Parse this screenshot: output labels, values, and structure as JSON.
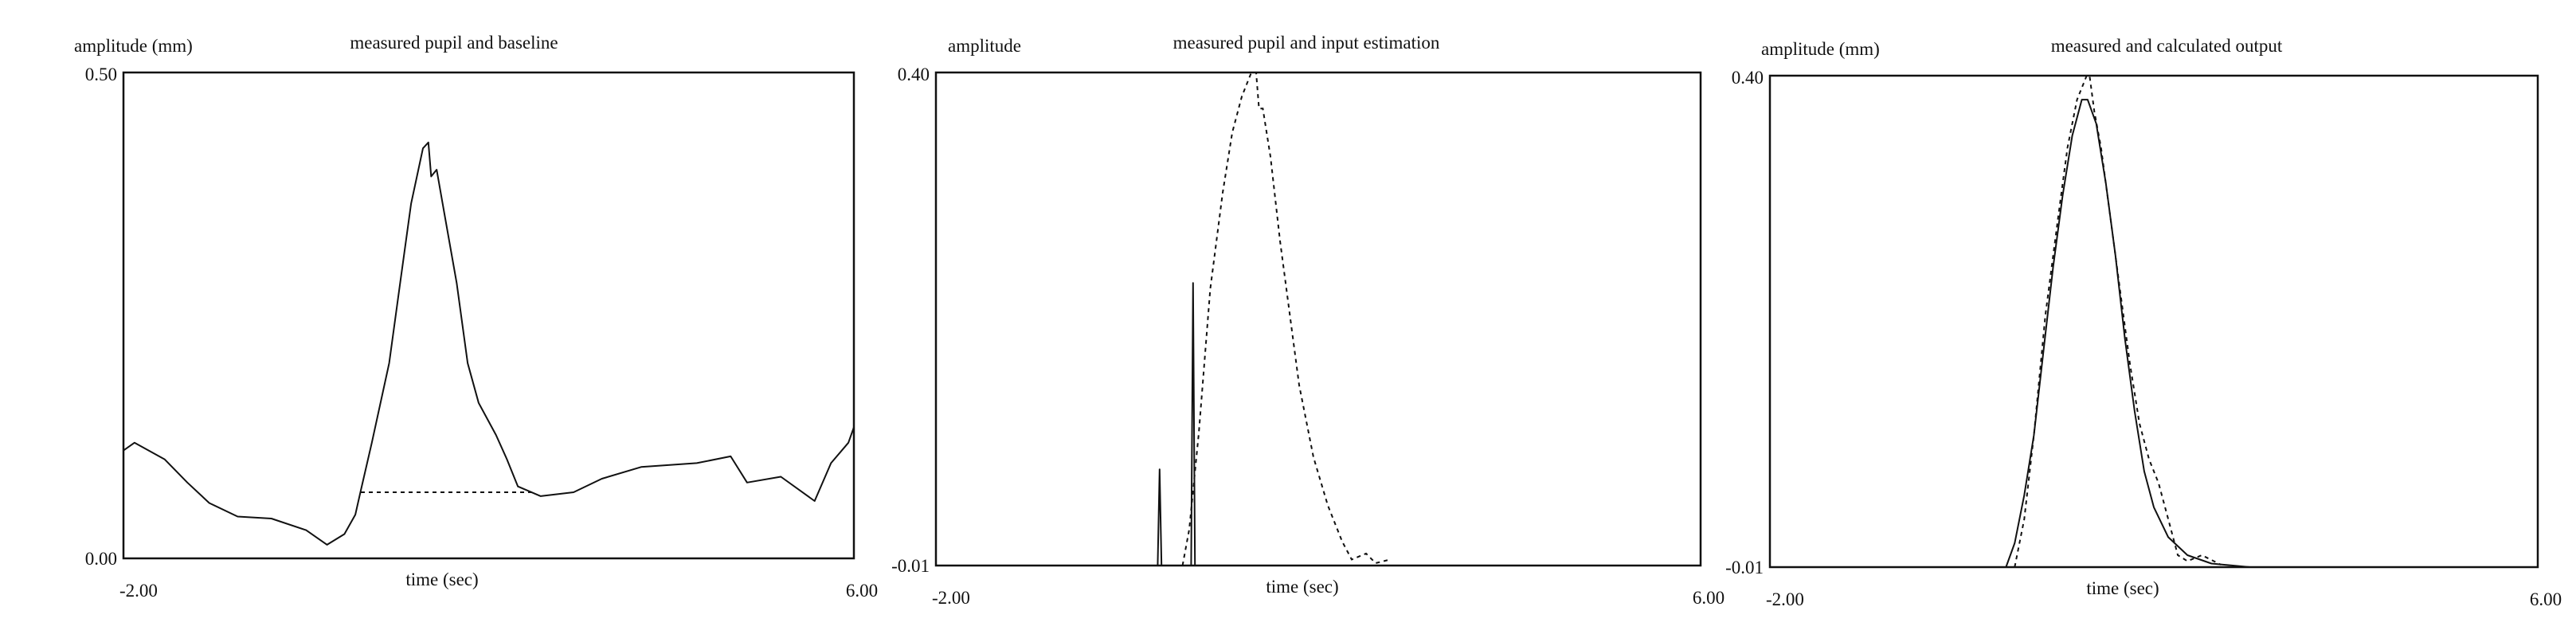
{
  "chart_data": [
    {
      "type": "line",
      "title": "measured pupil and baseline",
      "ylabel": "amplitude (mm)",
      "xlabel": "time (sec)",
      "xlim": [
        -2.0,
        6.0
      ],
      "ylim": [
        0.0,
        0.5
      ],
      "xtick_labels": [
        "-2.00",
        "6.00"
      ],
      "ytick_labels": [
        "0.00",
        "0.50"
      ],
      "grid": false,
      "series": [
        {
          "style": "solid",
          "x": [
            -2,
            -1.88,
            -1.55,
            -1.3,
            -1.06,
            -0.75,
            -0.38,
            0.0,
            0.23,
            0.42,
            0.54,
            0.6,
            0.72,
            0.91,
            1.03,
            1.15,
            1.28,
            1.34,
            1.37,
            1.43,
            1.52,
            1.65,
            1.77,
            1.89,
            2.08,
            2.2,
            2.32,
            2.57,
            2.93,
            3.24,
            3.67,
            4.28,
            4.65,
            4.83,
            5.2,
            5.57,
            5.75,
            5.94,
            6.0
          ],
          "y": [
            0.111,
            0.119,
            0.102,
            0.078,
            0.057,
            0.043,
            0.041,
            0.029,
            0.014,
            0.025,
            0.045,
            0.07,
            0.119,
            0.201,
            0.283,
            0.365,
            0.422,
            0.428,
            0.393,
            0.4,
            0.352,
            0.283,
            0.201,
            0.16,
            0.127,
            0.102,
            0.074,
            0.064,
            0.068,
            0.082,
            0.094,
            0.098,
            0.105,
            0.078,
            0.084,
            0.059,
            0.098,
            0.119,
            0.135
          ]
        },
        {
          "style": "dashed",
          "x": [
            0.6,
            2.5
          ],
          "y": [
            0.068,
            0.068
          ]
        }
      ]
    },
    {
      "type": "line",
      "title": "measured pupil and input estimation",
      "ylabel": "amplitude",
      "xlabel": "time (sec)",
      "xlim": [
        -2.0,
        6.0
      ],
      "ylim": [
        -0.01,
        0.4
      ],
      "xtick_labels": [
        "-2.00",
        "6.00"
      ],
      "ytick_labels": [
        "-0.01",
        "0.40"
      ],
      "grid": false,
      "series": [
        {
          "style": "solid",
          "x": [
            -2,
            0.32,
            0.34,
            0.36,
            0.67,
            0.69,
            0.71,
            6
          ],
          "y": [
            -0.01,
            -0.01,
            0.07,
            -0.01,
            -0.01,
            0.225,
            -0.01,
            -0.01
          ]
        },
        {
          "style": "dashed",
          "x": [
            0.58,
            0.65,
            0.75,
            0.87,
            1.0,
            1.1,
            1.2,
            1.3,
            1.35,
            1.38,
            1.42,
            1.5,
            1.6,
            1.7,
            1.8,
            1.95,
            2.1,
            2.25,
            2.35,
            2.5,
            2.6,
            2.75
          ],
          "y": [
            -0.01,
            0.02,
            0.1,
            0.22,
            0.3,
            0.35,
            0.38,
            0.4,
            0.4,
            0.37,
            0.37,
            0.33,
            0.26,
            0.2,
            0.14,
            0.08,
            0.04,
            0.01,
            -0.005,
            0.0,
            -0.008,
            -0.005
          ]
        }
      ]
    },
    {
      "type": "line",
      "title": "measured and calculated output",
      "ylabel": "amplitude (mm)",
      "xlabel": "time (sec)",
      "xlim": [
        -2.0,
        6.0
      ],
      "ylim": [
        -0.01,
        0.4
      ],
      "xtick_labels": [
        "-2.00",
        "6.00"
      ],
      "ytick_labels": [
        "-0.01",
        "0.40"
      ],
      "grid": false,
      "series": [
        {
          "style": "solid",
          "x": [
            -2,
            0.46,
            0.55,
            0.65,
            0.75,
            0.85,
            0.95,
            1.05,
            1.15,
            1.25,
            1.31,
            1.4,
            1.5,
            1.6,
            1.7,
            1.8,
            1.9,
            2.0,
            2.15,
            2.35,
            2.6,
            3.0,
            6
          ],
          "y": [
            -0.01,
            -0.01,
            0.01,
            0.05,
            0.1,
            0.17,
            0.24,
            0.3,
            0.35,
            0.38,
            0.38,
            0.36,
            0.31,
            0.25,
            0.18,
            0.12,
            0.07,
            0.04,
            0.015,
            0.0,
            -0.007,
            -0.01,
            -0.01
          ]
        },
        {
          "style": "dashed",
          "x": [
            0.55,
            0.65,
            0.75,
            0.87,
            1.0,
            1.1,
            1.2,
            1.3,
            1.33,
            1.38,
            1.45,
            1.55,
            1.65,
            1.75,
            1.85,
            1.95,
            2.05,
            2.15,
            2.25,
            2.35,
            2.5,
            2.7
          ],
          "y": [
            -0.01,
            0.03,
            0.1,
            0.2,
            0.28,
            0.34,
            0.38,
            0.4,
            0.4,
            0.37,
            0.34,
            0.28,
            0.22,
            0.16,
            0.11,
            0.08,
            0.06,
            0.03,
            0.0,
            -0.005,
            0.0,
            -0.008
          ]
        }
      ]
    }
  ]
}
